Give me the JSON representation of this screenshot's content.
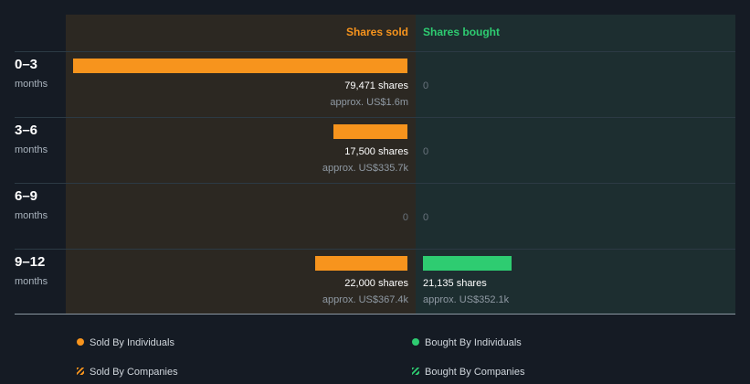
{
  "chart_data": {
    "type": "bar",
    "orientation": "horizontal-diverging",
    "headers": {
      "sold": "Shares sold",
      "bought": "Shares bought"
    },
    "unit_label": "months",
    "rows": [
      {
        "period": "0–3",
        "sold": 79471,
        "sold_shares": "79,471 shares",
        "sold_approx": "approx. US$1.6m",
        "bought": 0,
        "bought_shares": "0",
        "bought_approx": ""
      },
      {
        "period": "3–6",
        "sold": 17500,
        "sold_shares": "17,500 shares",
        "sold_approx": "approx. US$335.7k",
        "bought": 0,
        "bought_shares": "0",
        "bought_approx": ""
      },
      {
        "period": "6–9",
        "sold": 0,
        "sold_shares": "0",
        "sold_approx": "",
        "bought": 0,
        "bought_shares": "0",
        "bought_approx": ""
      },
      {
        "period": "9–12",
        "sold": 22000,
        "sold_shares": "22,000 shares",
        "sold_approx": "approx. US$367.4k",
        "bought": 21135,
        "bought_shares": "21,135 shares",
        "bought_approx": "approx. US$352.1k"
      }
    ],
    "scale_max": 79471,
    "colors": {
      "sold": "#f7941d",
      "bought": "#2ecc71"
    },
    "legend": [
      {
        "label": "Sold By Individuals",
        "style": "dot",
        "color": "#f7941d"
      },
      {
        "label": "Bought By Individuals",
        "style": "dot",
        "color": "#2ecc71"
      },
      {
        "label": "Sold By Companies",
        "style": "hatch",
        "color": "#f7941d"
      },
      {
        "label": "Bought By Companies",
        "style": "hatch",
        "color": "#2ecc71"
      }
    ]
  }
}
